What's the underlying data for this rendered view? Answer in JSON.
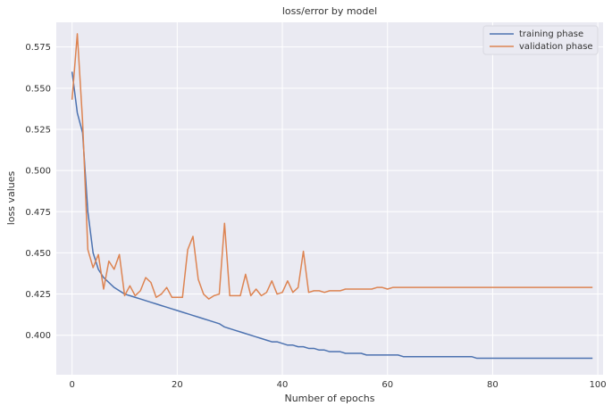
{
  "chart_data": {
    "type": "line",
    "title": "loss/error by model",
    "xlabel": "Number of epochs",
    "ylabel": "loss values",
    "xlim": [
      -3,
      101
    ],
    "ylim": [
      0.376,
      0.59
    ],
    "xticks": [
      0,
      20,
      40,
      60,
      80,
      100
    ],
    "yticks": [
      0.4,
      0.425,
      0.45,
      0.475,
      0.5,
      0.525,
      0.55,
      0.575
    ],
    "grid": true,
    "legend_position": "top-right",
    "series": [
      {
        "name": "training phase",
        "color": "#4c72b0",
        "x": [
          0,
          1,
          2,
          3,
          4,
          5,
          6,
          7,
          8,
          9,
          10,
          11,
          12,
          13,
          14,
          15,
          16,
          17,
          18,
          19,
          20,
          21,
          22,
          23,
          24,
          25,
          26,
          27,
          28,
          29,
          30,
          31,
          32,
          33,
          34,
          35,
          36,
          37,
          38,
          39,
          40,
          41,
          42,
          43,
          44,
          45,
          46,
          47,
          48,
          49,
          50,
          51,
          52,
          53,
          54,
          55,
          56,
          57,
          58,
          59,
          60,
          61,
          62,
          63,
          64,
          65,
          66,
          67,
          68,
          69,
          70,
          71,
          72,
          73,
          74,
          75,
          76,
          77,
          78,
          79,
          80,
          81,
          82,
          83,
          84,
          85,
          86,
          87,
          88,
          89,
          90,
          91,
          92,
          93,
          94,
          95,
          96,
          97,
          98,
          99
        ],
        "values": [
          0.56,
          0.535,
          0.523,
          0.475,
          0.45,
          0.44,
          0.435,
          0.432,
          0.429,
          0.427,
          0.425,
          0.424,
          0.423,
          0.422,
          0.421,
          0.42,
          0.419,
          0.418,
          0.417,
          0.416,
          0.415,
          0.414,
          0.413,
          0.412,
          0.411,
          0.41,
          0.409,
          0.408,
          0.407,
          0.405,
          0.404,
          0.403,
          0.402,
          0.401,
          0.4,
          0.399,
          0.398,
          0.397,
          0.396,
          0.396,
          0.395,
          0.394,
          0.394,
          0.393,
          0.393,
          0.392,
          0.392,
          0.391,
          0.391,
          0.39,
          0.39,
          0.39,
          0.389,
          0.389,
          0.389,
          0.389,
          0.388,
          0.388,
          0.388,
          0.388,
          0.388,
          0.388,
          0.388,
          0.387,
          0.387,
          0.387,
          0.387,
          0.387,
          0.387,
          0.387,
          0.387,
          0.387,
          0.387,
          0.387,
          0.387,
          0.387,
          0.387,
          0.386,
          0.386,
          0.386,
          0.386,
          0.386,
          0.386,
          0.386,
          0.386,
          0.386,
          0.386,
          0.386,
          0.386,
          0.386,
          0.386,
          0.386,
          0.386,
          0.386,
          0.386,
          0.386,
          0.386,
          0.386,
          0.386,
          0.386
        ]
      },
      {
        "name": "validation phase",
        "color": "#dd8452",
        "x": [
          0,
          1,
          2,
          3,
          4,
          5,
          6,
          7,
          8,
          9,
          10,
          11,
          12,
          13,
          14,
          15,
          16,
          17,
          18,
          19,
          20,
          21,
          22,
          23,
          24,
          25,
          26,
          27,
          28,
          29,
          30,
          31,
          32,
          33,
          34,
          35,
          36,
          37,
          38,
          39,
          40,
          41,
          42,
          43,
          44,
          45,
          46,
          47,
          48,
          49,
          50,
          51,
          52,
          53,
          54,
          55,
          56,
          57,
          58,
          59,
          60,
          61,
          62,
          63,
          64,
          65,
          66,
          67,
          68,
          69,
          70,
          71,
          72,
          73,
          74,
          75,
          76,
          77,
          78,
          79,
          80,
          81,
          82,
          83,
          84,
          85,
          86,
          87,
          88,
          89,
          90,
          91,
          92,
          93,
          94,
          95,
          96,
          97,
          98,
          99
        ],
        "values": [
          0.543,
          0.583,
          0.53,
          0.452,
          0.441,
          0.449,
          0.428,
          0.445,
          0.44,
          0.449,
          0.424,
          0.43,
          0.424,
          0.427,
          0.435,
          0.432,
          0.423,
          0.425,
          0.429,
          0.423,
          0.423,
          0.423,
          0.452,
          0.46,
          0.434,
          0.425,
          0.422,
          0.424,
          0.425,
          0.468,
          0.424,
          0.424,
          0.424,
          0.437,
          0.424,
          0.428,
          0.424,
          0.426,
          0.433,
          0.425,
          0.426,
          0.433,
          0.426,
          0.429,
          0.451,
          0.426,
          0.427,
          0.427,
          0.426,
          0.427,
          0.427,
          0.427,
          0.428,
          0.428,
          0.428,
          0.428,
          0.428,
          0.428,
          0.429,
          0.429,
          0.428,
          0.429,
          0.429,
          0.429,
          0.429,
          0.429,
          0.429,
          0.429,
          0.429,
          0.429,
          0.429,
          0.429,
          0.429,
          0.429,
          0.429,
          0.429,
          0.429,
          0.429,
          0.429,
          0.429,
          0.429,
          0.429,
          0.429,
          0.429,
          0.429,
          0.429,
          0.429,
          0.429,
          0.429,
          0.429,
          0.429,
          0.429,
          0.429,
          0.429,
          0.429,
          0.429,
          0.429,
          0.429,
          0.429,
          0.429
        ]
      }
    ]
  }
}
